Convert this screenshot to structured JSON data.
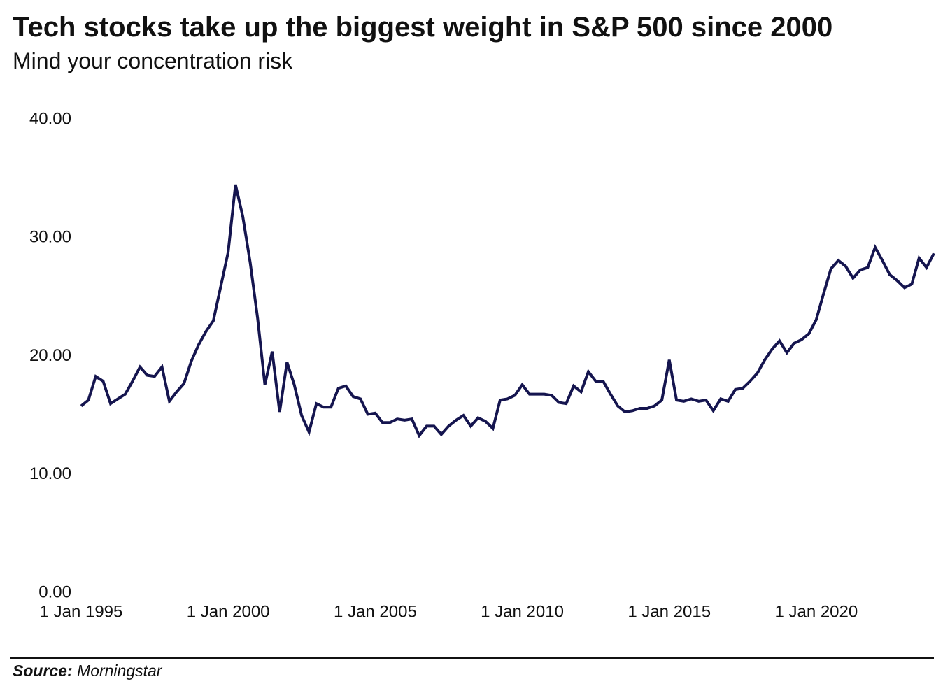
{
  "chart_data": {
    "type": "line",
    "title": "Tech stocks take up the biggest weight in S&P 500 since 2000",
    "subtitle": "Mind your concentration risk",
    "source_label": "Source:",
    "source": "Morningstar",
    "x": [
      "1995-01-01",
      "1995-04-01",
      "1995-07-01",
      "1995-10-01",
      "1996-01-01",
      "1996-04-01",
      "1996-07-01",
      "1996-10-01",
      "1997-01-01",
      "1997-04-01",
      "1997-07-01",
      "1997-10-01",
      "1998-01-01",
      "1998-04-01",
      "1998-07-01",
      "1998-10-01",
      "1999-01-01",
      "1999-04-01",
      "1999-07-01",
      "1999-10-01",
      "2000-01-01",
      "2000-04-01",
      "2000-07-01",
      "2000-10-01",
      "2001-01-01",
      "2001-04-01",
      "2001-07-01",
      "2001-10-01",
      "2002-01-01",
      "2002-04-01",
      "2002-07-01",
      "2002-10-01",
      "2003-01-01",
      "2003-04-01",
      "2003-07-01",
      "2003-10-01",
      "2004-01-01",
      "2004-04-01",
      "2004-07-01",
      "2004-10-01",
      "2005-01-01",
      "2005-04-01",
      "2005-07-01",
      "2005-10-01",
      "2006-01-01",
      "2006-04-01",
      "2006-07-01",
      "2006-10-01",
      "2007-01-01",
      "2007-04-01",
      "2007-07-01",
      "2007-10-01",
      "2008-01-01",
      "2008-04-01",
      "2008-07-01",
      "2008-10-01",
      "2009-01-01",
      "2009-04-01",
      "2009-07-01",
      "2009-10-01",
      "2010-01-01",
      "2010-04-01",
      "2010-07-01",
      "2010-10-01",
      "2011-01-01",
      "2011-04-01",
      "2011-07-01",
      "2011-10-01",
      "2012-01-01",
      "2012-04-01",
      "2012-07-01",
      "2012-10-01",
      "2013-01-01",
      "2013-04-01",
      "2013-07-01",
      "2013-10-01",
      "2014-01-01",
      "2014-04-01",
      "2014-07-01",
      "2014-10-01",
      "2015-01-01",
      "2015-04-01",
      "2015-07-01",
      "2015-10-01",
      "2016-01-01",
      "2016-04-01",
      "2016-07-01",
      "2016-10-01",
      "2017-01-01",
      "2017-04-01",
      "2017-07-01",
      "2017-10-01",
      "2018-01-01",
      "2018-04-01",
      "2018-07-01",
      "2018-10-01",
      "2019-01-01",
      "2019-04-01",
      "2019-07-01",
      "2019-10-01",
      "2020-01-01",
      "2020-04-01",
      "2020-07-01",
      "2020-10-01",
      "2021-01-01",
      "2021-04-01",
      "2021-07-01",
      "2021-10-01",
      "2022-01-01",
      "2022-04-01",
      "2022-07-01",
      "2022-10-01",
      "2023-01-01",
      "2023-04-01",
      "2023-07-01",
      "2023-10-01",
      "2024-01-01"
    ],
    "series": [
      {
        "color": "#15154f",
        "values": [
          15.8,
          16.3,
          18.3,
          17.9,
          16.0,
          16.4,
          16.8,
          17.9,
          19.1,
          18.4,
          18.3,
          19.1,
          16.2,
          17.0,
          17.7,
          19.6,
          21.0,
          22.1,
          23.0,
          25.9,
          28.8,
          34.5,
          31.8,
          27.9,
          23.2,
          17.6,
          20.4,
          15.3,
          19.5,
          17.6,
          15.0,
          13.6,
          16.0,
          15.7,
          15.7,
          17.3,
          17.5,
          16.6,
          16.4,
          15.1,
          15.2,
          14.4,
          14.4,
          14.7,
          14.6,
          14.7,
          13.3,
          14.1,
          14.1,
          13.4,
          14.1,
          14.6,
          15.0,
          14.1,
          14.8,
          14.5,
          13.9,
          16.3,
          16.4,
          16.7,
          17.6,
          16.8,
          16.8,
          16.8,
          16.7,
          16.1,
          16.0,
          17.5,
          17.0,
          18.7,
          17.9,
          17.9,
          16.8,
          15.8,
          15.3,
          15.4,
          15.6,
          15.6,
          15.8,
          16.3,
          19.7,
          16.3,
          16.2,
          16.4,
          16.2,
          16.3,
          15.4,
          16.4,
          16.2,
          17.2,
          17.3,
          17.9,
          18.6,
          19.7,
          20.6,
          21.3,
          20.3,
          21.1,
          21.4,
          21.9,
          23.1,
          25.3,
          27.4,
          28.1,
          27.6,
          26.6,
          27.3,
          27.5,
          29.2,
          28.1,
          26.9,
          26.4,
          25.8,
          26.1,
          28.3,
          27.5,
          28.7
        ]
      }
    ],
    "xlim": [
      "1995-01-01",
      "2024-01-01"
    ],
    "xticks": [
      {
        "value": "1995-01-01",
        "label": "1 Jan 1995"
      },
      {
        "value": "2000-01-01",
        "label": "1 Jan 2000"
      },
      {
        "value": "2005-01-01",
        "label": "1 Jan 2005"
      },
      {
        "value": "2010-01-01",
        "label": "1 Jan 2010"
      },
      {
        "value": "2015-01-01",
        "label": "1 Jan 2015"
      },
      {
        "value": "2020-01-01",
        "label": "1 Jan 2020"
      }
    ],
    "ylim": [
      0,
      40
    ],
    "yticks": [
      {
        "value": 0,
        "label": "0.00"
      },
      {
        "value": 10,
        "label": "10.00"
      },
      {
        "value": 20,
        "label": "20.00"
      },
      {
        "value": 30,
        "label": "30.00"
      },
      {
        "value": 40,
        "label": "40.00"
      }
    ],
    "grid": false
  }
}
